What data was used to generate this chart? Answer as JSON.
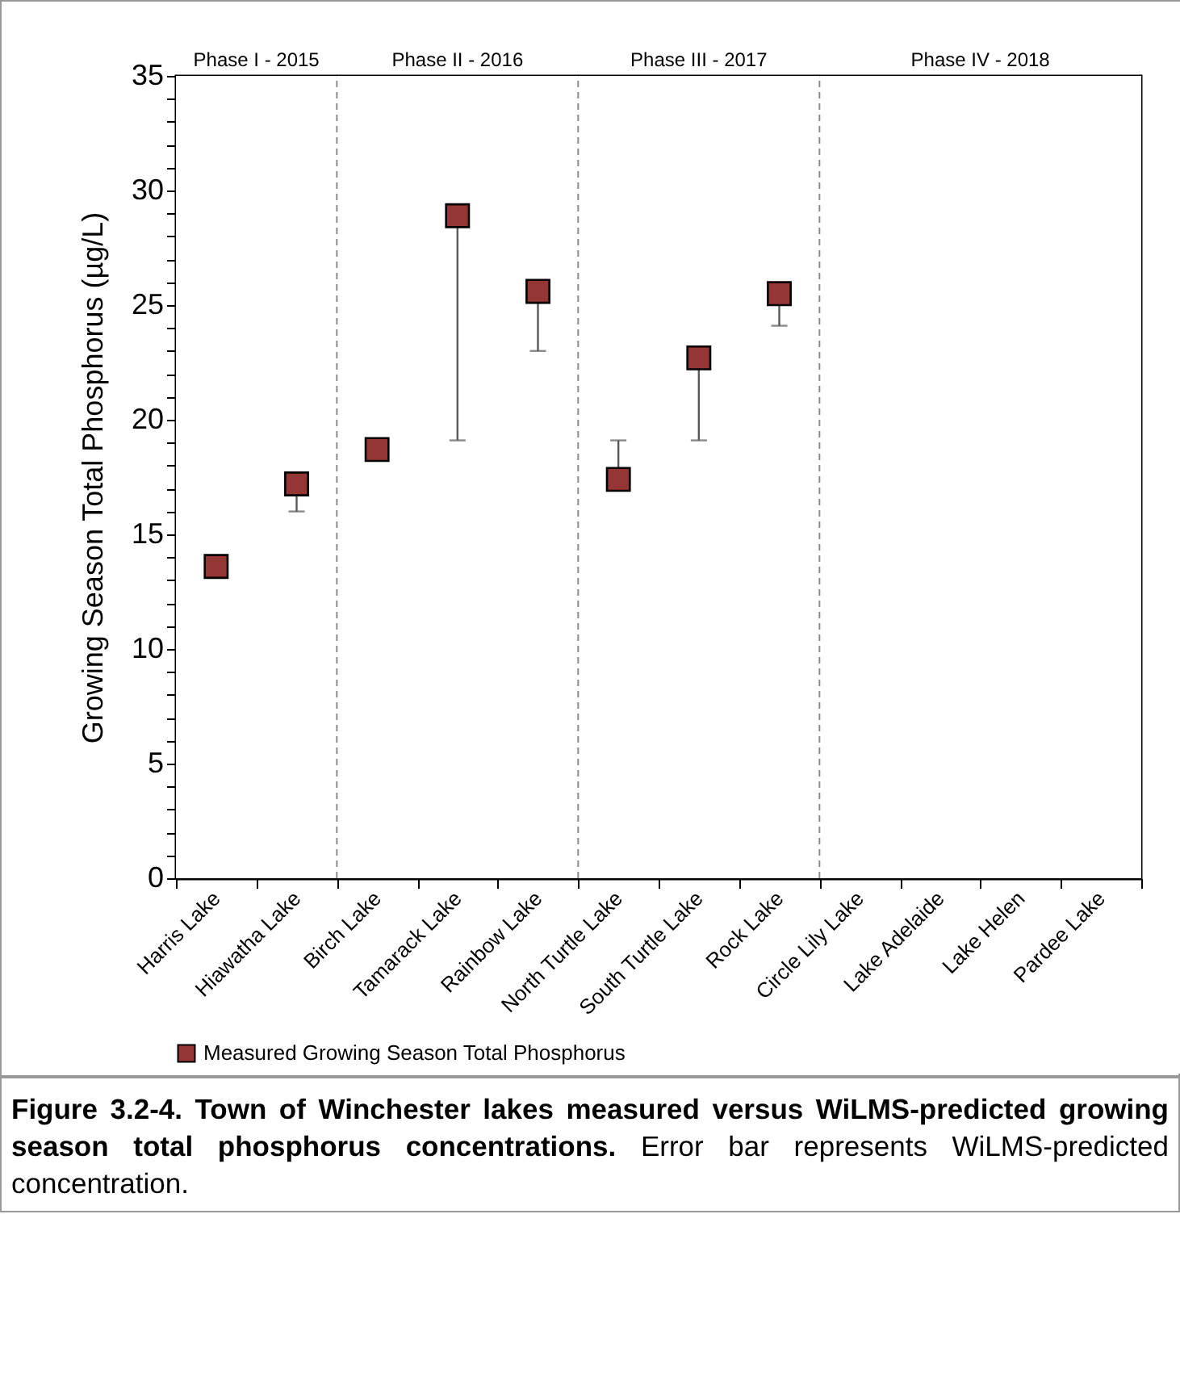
{
  "chart_data": {
    "type": "scatter",
    "title": "Figure 3.2-4.  Town of Winchester lakes measured versus WiLMS-predicted growing season total phosphorus concentrations.",
    "annotations": [
      "Error bar represents WiLMS-predicted concentration."
    ],
    "ylabel": "Growing Season Total Phosphorus (µg/L)",
    "categories": [
      "Harris Lake",
      "Hiawatha Lake",
      "Birch Lake",
      "Tamarack Lake",
      "Rainbow Lake",
      "North Turtle Lake",
      "South Turtle Lake",
      "Rock Lake",
      "Circle Lily Lake",
      "Lake Adelaide",
      "Lake Helen",
      "Pardee Lake"
    ],
    "series": [
      {
        "name": "Measured Growing Season Total Phosphorus",
        "color": "#943634",
        "values": [
          13.6,
          17.2,
          18.7,
          28.9,
          25.6,
          17.4,
          22.7,
          25.5,
          null,
          null,
          null,
          null
        ],
        "errors": [
          null,
          [
            16.0,
            17.2
          ],
          null,
          [
            19.1,
            28.9
          ],
          [
            23.0,
            25.6
          ],
          [
            17.4,
            19.1
          ],
          [
            19.1,
            22.7
          ],
          [
            24.1,
            25.5
          ],
          null,
          null,
          null,
          null
        ]
      }
    ],
    "ylim": [
      0,
      35
    ],
    "yticks": [
      0,
      {
        "value": 1,
        "label": null
      },
      {
        "value": 2,
        "label": null
      },
      {
        "value": 3,
        "label": null
      },
      {
        "value": 4,
        "label": null
      },
      5,
      {
        "value": 6,
        "label": null
      },
      {
        "value": 7,
        "label": null
      },
      {
        "value": 8,
        "label": null
      },
      {
        "value": 9,
        "label": null
      },
      10,
      {
        "value": 11,
        "label": null
      },
      {
        "value": 12,
        "label": null
      },
      {
        "value": 13,
        "label": null
      },
      {
        "value": 14,
        "label": null
      },
      15,
      {
        "value": 16,
        "label": null
      },
      {
        "value": 17,
        "label": null
      },
      {
        "value": 18,
        "label": null
      },
      {
        "value": 19,
        "label": null
      },
      20,
      {
        "value": 21,
        "label": null
      },
      {
        "value": 22,
        "label": null
      },
      {
        "value": 23,
        "label": null
      },
      {
        "value": 24,
        "label": null
      },
      25,
      {
        "value": 26,
        "label": null
      },
      {
        "value": 27,
        "label": null
      },
      {
        "value": 28,
        "label": null
      },
      {
        "value": 29,
        "label": null
      },
      30,
      {
        "value": 31,
        "label": null
      },
      {
        "value": 32,
        "label": null
      },
      {
        "value": 33,
        "label": null
      },
      {
        "value": 34,
        "label": null
      },
      35
    ],
    "bands": [
      {
        "axis": "x",
        "from": "Harris Lake",
        "to": "Hiawatha Lake",
        "label": "Phase I - 2015",
        "color": "#ffffff"
      },
      {
        "axis": "x",
        "from": "Birch Lake",
        "to": "Rainbow Lake",
        "label": "Phase II - 2016",
        "color": "#ffffff"
      },
      {
        "axis": "x",
        "from": "North Turtle Lake",
        "to": "Rock Lake",
        "label": "Phase III - 2017",
        "color": "#ffffff"
      },
      {
        "axis": "x",
        "from": "Circle Lily Lake",
        "to": "Pardee Lake",
        "label": "Phase IV - 2018",
        "color": "#ffffff"
      }
    ],
    "marker": "square",
    "legend": "bottom",
    "grid": false
  }
}
